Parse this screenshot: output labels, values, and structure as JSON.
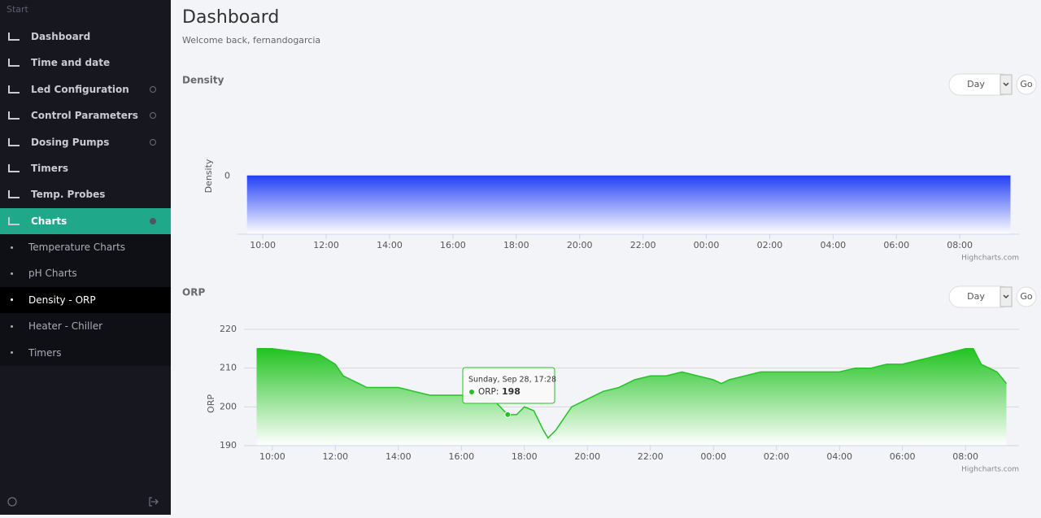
{
  "sidebar": {
    "header": "Start",
    "items": [
      "Dashboard",
      "Time and date",
      "Led Configuration",
      "Control Parameters",
      "Dosing Pumps",
      "Timers",
      "Temp. Probes",
      "Charts"
    ],
    "subitems": [
      "Temperature Charts",
      "pH Charts",
      "Density - ORP",
      "Heater - Chiller",
      "Timers"
    ]
  },
  "header": {
    "title": "Dashboard",
    "subtitle": "Welcome back, fernandogarcia"
  },
  "chart_data": [
    {
      "type": "area",
      "title": "Density",
      "y_label": "Density",
      "range_button": "Day",
      "go_button": "Go",
      "credit": "Highcharts.com",
      "x": [
        9.5,
        33.6
      ],
      "series": [
        {
          "name": "Density",
          "color": "#2541f5",
          "values": [
            0,
            0
          ]
        }
      ],
      "xlim": [
        9.2,
        33.87
      ],
      "xticks": [
        {
          "value": 10,
          "label": "10:00"
        },
        {
          "value": 12,
          "label": "12:00"
        },
        {
          "value": 14,
          "label": "14:00"
        },
        {
          "value": 16,
          "label": "16:00"
        },
        {
          "value": 18,
          "label": "18:00"
        },
        {
          "value": 20,
          "label": "20:00"
        },
        {
          "value": 22,
          "label": "22:00"
        },
        {
          "value": 24,
          "label": "00:00"
        },
        {
          "value": 26,
          "label": "02:00"
        },
        {
          "value": 28,
          "label": "04:00"
        },
        {
          "value": 30,
          "label": "06:00"
        },
        {
          "value": 32,
          "label": "08:00"
        }
      ],
      "ylim": [
        -1,
        1
      ],
      "yticks": [
        0
      ],
      "grid": false
    },
    {
      "type": "area",
      "title": "ORP",
      "y_label": "ORP",
      "range_button": "Day",
      "go_button": "Go",
      "credit": "Highcharts.com",
      "x": [
        9.5,
        10,
        10.5,
        11,
        11.5,
        12,
        12.25,
        12.5,
        12.75,
        13,
        13.5,
        14,
        14.5,
        15,
        15.5,
        16,
        16.5,
        17,
        17.47,
        17.75,
        18,
        18.3,
        18.6,
        18.75,
        19,
        19.25,
        19.5,
        20,
        20.5,
        21,
        21.5,
        22,
        22.5,
        23,
        23.5,
        24,
        24.25,
        24.5,
        25,
        25.5,
        26,
        26.5,
        27,
        27.5,
        28,
        28.5,
        29,
        29.5,
        30,
        30.5,
        31,
        31.5,
        32,
        32.25,
        32.5,
        33,
        33.3
      ],
      "series": [
        {
          "name": "ORP",
          "color": "#22c322",
          "values": [
            215,
            215,
            214.5,
            214,
            213.5,
            211,
            208,
            207,
            206,
            205,
            205,
            205,
            204,
            203,
            203,
            203,
            202.5,
            202,
            198,
            198,
            200,
            199,
            194,
            192,
            194,
            197,
            200,
            202,
            204,
            205,
            207,
            208,
            208,
            209,
            208,
            207,
            206,
            207,
            208,
            209,
            209,
            209,
            209,
            209,
            209,
            210,
            210,
            211,
            211,
            212,
            213,
            214,
            215,
            215,
            211,
            209,
            206
          ]
        }
      ],
      "tooltip": {
        "date": "Sunday, Sep 28, 17:28",
        "label": "ORP:"
      },
      "xlim": [
        9.1,
        33.7
      ],
      "xticks": [
        {
          "value": 10,
          "label": "10:00"
        },
        {
          "value": 12,
          "label": "12:00"
        },
        {
          "value": 14,
          "label": "14:00"
        },
        {
          "value": 16,
          "label": "16:00"
        },
        {
          "value": 18,
          "label": "18:00"
        },
        {
          "value": 20,
          "label": "20:00"
        },
        {
          "value": 22,
          "label": "22:00"
        },
        {
          "value": 24,
          "label": "00:00"
        },
        {
          "value": 26,
          "label": "02:00"
        },
        {
          "value": 28,
          "label": "04:00"
        },
        {
          "value": 30,
          "label": "06:00"
        },
        {
          "value": 32,
          "label": "08:00"
        }
      ],
      "ylim": [
        190,
        220
      ],
      "yticks": [
        190,
        200,
        210,
        220
      ],
      "grid": true
    }
  ]
}
